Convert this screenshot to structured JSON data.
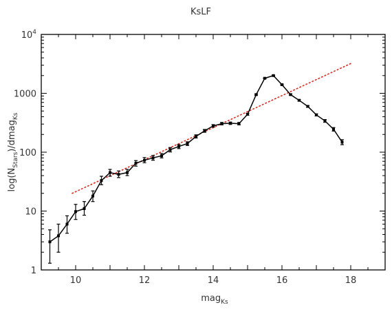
{
  "chart_data": {
    "type": "line",
    "title": "KsLF",
    "xlabel": {
      "base": "mag",
      "sub": "Ks"
    },
    "ylabel": {
      "part1": "log(N",
      "sub1": "Stars",
      "part2": ")/dmag",
      "sub2": "Ks"
    },
    "xlim": [
      9,
      19
    ],
    "ylim": [
      1,
      10000
    ],
    "yscale": "log",
    "grid": false,
    "xticks": [
      {
        "value": 10,
        "label": "10"
      },
      {
        "value": 12,
        "label": "12"
      },
      {
        "value": 14,
        "label": "14"
      },
      {
        "value": 16,
        "label": "16"
      },
      {
        "value": 18,
        "label": "18"
      }
    ],
    "yticks": [
      {
        "value": 1,
        "label": "1"
      },
      {
        "value": 10,
        "label": "10"
      },
      {
        "value": 100,
        "label": "100"
      },
      {
        "value": 1000,
        "label": "1000"
      },
      {
        "value": 10000,
        "label": "10",
        "sup": "4"
      }
    ],
    "series": [
      {
        "style": "black-line-errorbars",
        "color": "#000000",
        "points": [
          {
            "x": 9.25,
            "y": 3.0,
            "lo": 1.3,
            "hi": 4.8
          },
          {
            "x": 9.5,
            "y": 3.8,
            "lo": 2.0,
            "hi": 6.0
          },
          {
            "x": 9.75,
            "y": 6.0,
            "lo": 4.2,
            "hi": 8.3
          },
          {
            "x": 10.0,
            "y": 9.8,
            "lo": 7.2,
            "hi": 13.0
          },
          {
            "x": 10.25,
            "y": 11.0,
            "lo": 8.5,
            "hi": 14.5
          },
          {
            "x": 10.5,
            "y": 18.0,
            "lo": 14.5,
            "hi": 22.0
          },
          {
            "x": 10.75,
            "y": 33.0,
            "lo": 28.0,
            "hi": 39.0
          },
          {
            "x": 11.0,
            "y": 45.0,
            "lo": 39.0,
            "hi": 51.0
          },
          {
            "x": 11.25,
            "y": 42.0,
            "lo": 37.0,
            "hi": 48.0
          },
          {
            "x": 11.5,
            "y": 45.0,
            "lo": 40.0,
            "hi": 51.0
          },
          {
            "x": 11.75,
            "y": 65.0,
            "lo": 58.0,
            "hi": 72.0
          },
          {
            "x": 12.0,
            "y": 73.0,
            "lo": 66.0,
            "hi": 81.0
          },
          {
            "x": 12.25,
            "y": 80.0,
            "lo": 73.0,
            "hi": 88.0
          },
          {
            "x": 12.5,
            "y": 87.0,
            "lo": 80.0,
            "hi": 95.0
          },
          {
            "x": 12.75,
            "y": 110.0,
            "lo": 101.0,
            "hi": 120.0
          },
          {
            "x": 13.0,
            "y": 125.0,
            "lo": 115.0,
            "hi": 135.0
          },
          {
            "x": 13.25,
            "y": 140.0,
            "lo": 130.0,
            "hi": 150.0
          },
          {
            "x": 13.5,
            "y": 185.0,
            "lo": 174.0,
            "hi": 197.0
          },
          {
            "x": 13.75,
            "y": 230.0,
            "lo": 218.0,
            "hi": 243.0
          },
          {
            "x": 14.0,
            "y": 280.0,
            "lo": 266.0,
            "hi": 294.0
          },
          {
            "x": 14.25,
            "y": 305.0,
            "lo": 291.0,
            "hi": 320.0
          },
          {
            "x": 14.5,
            "y": 310.0,
            "lo": 296.0,
            "hi": 325.0
          },
          {
            "x": 14.75,
            "y": 305.0,
            "lo": 291.0,
            "hi": 320.0
          },
          {
            "x": 15.0,
            "y": 440.0,
            "lo": 423.0,
            "hi": 458.0
          },
          {
            "x": 15.25,
            "y": 950.0,
            "lo": 925.0,
            "hi": 975.0
          },
          {
            "x": 15.5,
            "y": 1800.0,
            "lo": 1765.0,
            "hi": 1835.0
          },
          {
            "x": 15.75,
            "y": 2000.0,
            "lo": 1963.0,
            "hi": 2037.0
          },
          {
            "x": 16.0,
            "y": 1400.0,
            "lo": 1370.0,
            "hi": 1430.0
          },
          {
            "x": 16.25,
            "y": 950.0,
            "lo": 925.0,
            "hi": 975.0
          },
          {
            "x": 16.5,
            "y": 760.0,
            "lo": 738.0,
            "hi": 782.0
          },
          {
            "x": 16.75,
            "y": 600.0,
            "lo": 580.0,
            "hi": 620.0
          },
          {
            "x": 17.0,
            "y": 430.0,
            "lo": 413.0,
            "hi": 447.0
          },
          {
            "x": 17.25,
            "y": 340.0,
            "lo": 322.0,
            "hi": 358.0
          },
          {
            "x": 17.5,
            "y": 245.0,
            "lo": 228.0,
            "hi": 262.0
          },
          {
            "x": 17.75,
            "y": 148.0,
            "lo": 134.0,
            "hi": 163.0
          }
        ]
      },
      {
        "style": "red-dotted-fit",
        "color": "#d62a1e",
        "points": [
          {
            "x": 9.9,
            "y": 20
          },
          {
            "x": 18.0,
            "y": 3200
          }
        ]
      }
    ]
  }
}
